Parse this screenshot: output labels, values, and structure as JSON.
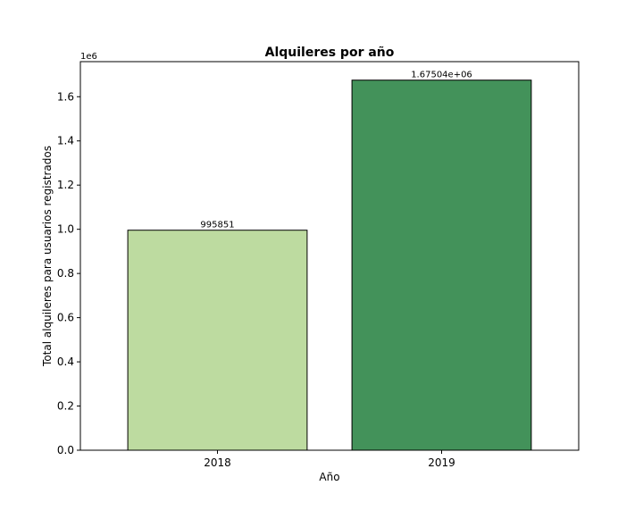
{
  "chart_data": {
    "type": "bar",
    "title": "Alquileres por año",
    "xlabel": "Año",
    "ylabel": "Total alquileres para usuarios registrados",
    "y_offset_label": "1e6",
    "categories": [
      "2018",
      "2019"
    ],
    "values": [
      995851,
      1675040
    ],
    "data_labels": [
      "995851",
      "1.67504e+06"
    ],
    "bar_colors": [
      "#bddba0",
      "#43925a"
    ],
    "edge_color": "#000000",
    "ylim": [
      0,
      1758792
    ],
    "yticks": [
      0,
      200000,
      400000,
      600000,
      800000,
      1000000,
      1200000,
      1400000,
      1600000
    ],
    "ytick_labels": [
      "0.0",
      "0.2",
      "0.4",
      "0.6",
      "0.8",
      "1.0",
      "1.2",
      "1.4",
      "1.6"
    ],
    "grid": false,
    "legend": "none"
  }
}
